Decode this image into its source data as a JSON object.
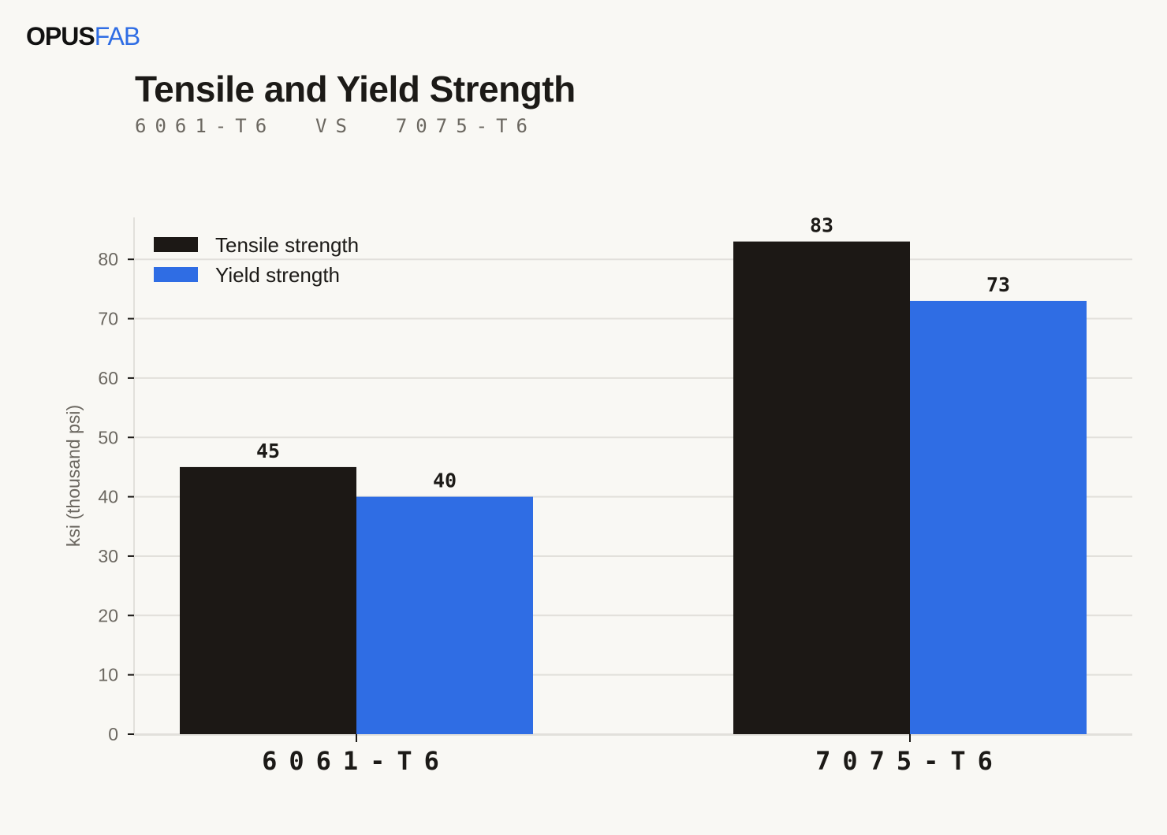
{
  "brand": {
    "part1": "OPUS",
    "part2": "FAB"
  },
  "chart_data": {
    "type": "bar",
    "title": "Tensile and Yield Strength",
    "subtitle": "6061-T6  VS  7075-T6",
    "categories": [
      "6061-T6",
      "7075-T6"
    ],
    "series": [
      {
        "name": "Tensile strength",
        "values": [
          45,
          83
        ],
        "color": "#1c1815"
      },
      {
        "name": "Yield strength",
        "values": [
          40,
          73
        ],
        "color": "#2f6de4"
      }
    ],
    "ylabel": "ksi (thousand psi)",
    "xlabel": "",
    "ylim": [
      0,
      87
    ],
    "yticks": [
      0,
      10,
      20,
      30,
      40,
      50,
      60,
      70,
      80
    ],
    "grid": true,
    "legend": "top-left"
  }
}
